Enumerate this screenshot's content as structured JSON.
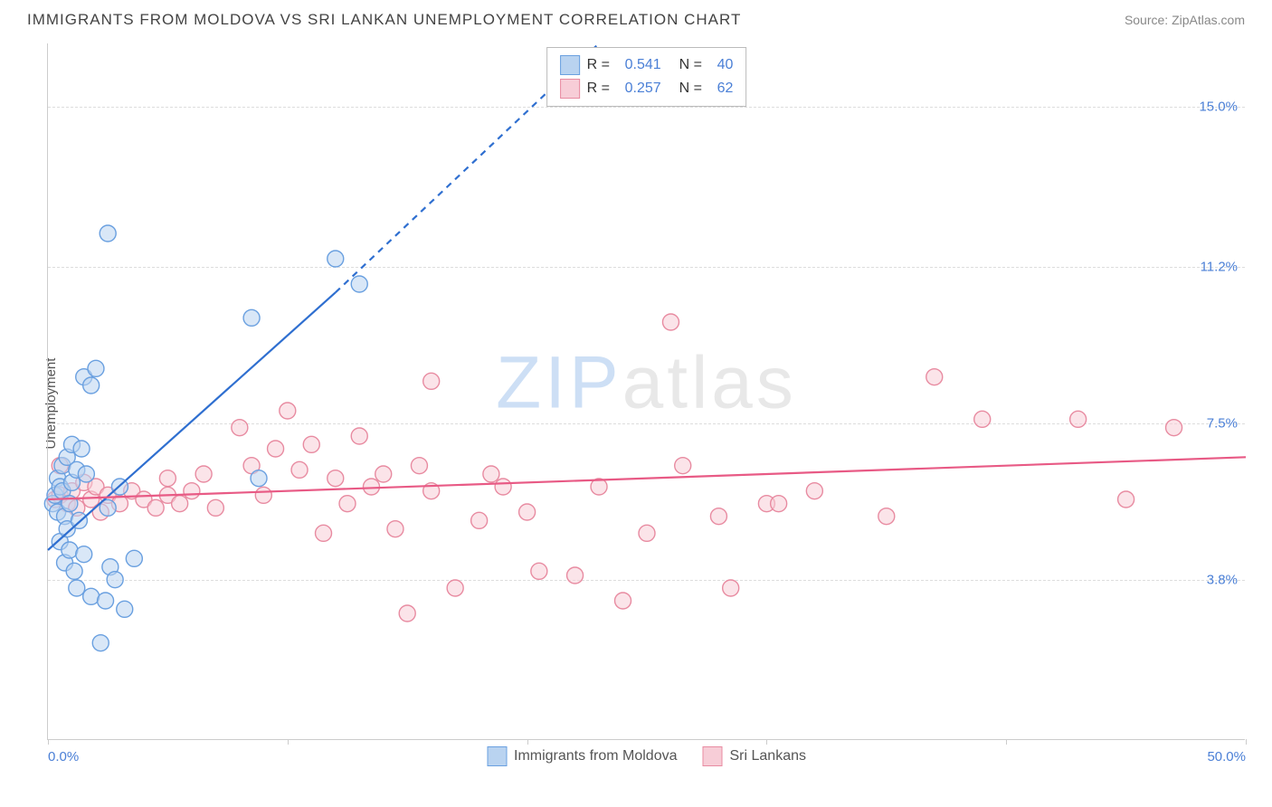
{
  "header": {
    "title": "IMMIGRANTS FROM MOLDOVA VS SRI LANKAN UNEMPLOYMENT CORRELATION CHART",
    "source": "Source: ZipAtlas.com"
  },
  "watermark": {
    "left": "ZIP",
    "right": "atlas"
  },
  "chart": {
    "type": "scatter",
    "ylabel": "Unemployment",
    "xlim": [
      0,
      50
    ],
    "ylim": [
      0,
      16.5
    ],
    "xtick_positions": [
      0,
      10,
      20,
      30,
      40,
      50
    ],
    "xtick_labels_shown": {
      "0": "0.0%",
      "50": "50.0%"
    },
    "yticks": [
      {
        "v": 3.8,
        "label": "3.8%"
      },
      {
        "v": 7.5,
        "label": "7.5%"
      },
      {
        "v": 11.2,
        "label": "11.2%"
      },
      {
        "v": 15.0,
        "label": "15.0%"
      }
    ],
    "background_color": "#ffffff",
    "grid_color": "#dddddd",
    "axis_color": "#cccccc",
    "marker_radius": 9,
    "marker_stroke_width": 1.4,
    "trend_line_width": 2.2
  },
  "series": [
    {
      "name": "Immigrants from Moldova",
      "fill_color": "#b9d3f0",
      "stroke_color": "#6aa0e0",
      "line_color": "#2f6fd0",
      "r_value": "0.541",
      "n_value": "40",
      "trend": {
        "x1": 0,
        "y1": 4.5,
        "x2": 12,
        "y2": 10.6,
        "x2_dash": 23,
        "y2_dash": 16.5
      },
      "points": [
        [
          0.2,
          5.6
        ],
        [
          0.3,
          5.8
        ],
        [
          0.4,
          6.2
        ],
        [
          0.4,
          5.4
        ],
        [
          0.5,
          4.7
        ],
        [
          0.5,
          6.0
        ],
        [
          0.6,
          5.9
        ],
        [
          0.6,
          6.5
        ],
        [
          0.7,
          4.2
        ],
        [
          0.7,
          5.3
        ],
        [
          0.8,
          5.0
        ],
        [
          0.8,
          6.7
        ],
        [
          0.9,
          5.6
        ],
        [
          0.9,
          4.5
        ],
        [
          1.0,
          6.1
        ],
        [
          1.0,
          7.0
        ],
        [
          1.1,
          4.0
        ],
        [
          1.2,
          6.4
        ],
        [
          1.2,
          3.6
        ],
        [
          1.3,
          5.2
        ],
        [
          1.4,
          6.9
        ],
        [
          1.5,
          8.6
        ],
        [
          1.5,
          4.4
        ],
        [
          1.6,
          6.3
        ],
        [
          1.8,
          8.4
        ],
        [
          1.8,
          3.4
        ],
        [
          2.0,
          8.8
        ],
        [
          2.2,
          2.3
        ],
        [
          2.4,
          3.3
        ],
        [
          2.5,
          5.5
        ],
        [
          2.5,
          12.0
        ],
        [
          2.6,
          4.1
        ],
        [
          2.8,
          3.8
        ],
        [
          3.0,
          6.0
        ],
        [
          3.2,
          3.1
        ],
        [
          3.6,
          4.3
        ],
        [
          8.5,
          10.0
        ],
        [
          8.8,
          6.2
        ],
        [
          12.0,
          11.4
        ],
        [
          13.0,
          10.8
        ]
      ]
    },
    {
      "name": "Sri Lankans",
      "fill_color": "#f7cdd7",
      "stroke_color": "#e88ba1",
      "line_color": "#e85a85",
      "r_value": "0.257",
      "n_value": "62",
      "trend": {
        "x1": 0,
        "y1": 5.7,
        "x2": 50,
        "y2": 6.7
      },
      "points": [
        [
          0.3,
          5.7
        ],
        [
          0.5,
          5.8
        ],
        [
          0.5,
          6.5
        ],
        [
          0.8,
          5.6
        ],
        [
          1.0,
          5.9
        ],
        [
          1.2,
          5.5
        ],
        [
          1.5,
          6.1
        ],
        [
          1.8,
          5.7
        ],
        [
          2.0,
          6.0
        ],
        [
          2.2,
          5.4
        ],
        [
          2.5,
          5.8
        ],
        [
          3.0,
          5.6
        ],
        [
          3.5,
          5.9
        ],
        [
          4.0,
          5.7
        ],
        [
          4.5,
          5.5
        ],
        [
          5.0,
          6.2
        ],
        [
          5.0,
          5.8
        ],
        [
          5.5,
          5.6
        ],
        [
          6.0,
          5.9
        ],
        [
          6.5,
          6.3
        ],
        [
          7.0,
          5.5
        ],
        [
          8.0,
          7.4
        ],
        [
          8.5,
          6.5
        ],
        [
          9.0,
          5.8
        ],
        [
          9.5,
          6.9
        ],
        [
          10.0,
          7.8
        ],
        [
          10.5,
          6.4
        ],
        [
          11.0,
          7.0
        ],
        [
          11.5,
          4.9
        ],
        [
          12.0,
          6.2
        ],
        [
          12.5,
          5.6
        ],
        [
          13.0,
          7.2
        ],
        [
          13.5,
          6.0
        ],
        [
          14.0,
          6.3
        ],
        [
          14.5,
          5.0
        ],
        [
          15.0,
          3.0
        ],
        [
          15.5,
          6.5
        ],
        [
          16.0,
          5.9
        ],
        [
          16.0,
          8.5
        ],
        [
          17.0,
          3.6
        ],
        [
          18.0,
          5.2
        ],
        [
          18.5,
          6.3
        ],
        [
          19.0,
          6.0
        ],
        [
          20.0,
          5.4
        ],
        [
          20.5,
          4.0
        ],
        [
          22.0,
          3.9
        ],
        [
          23.0,
          6.0
        ],
        [
          24.0,
          3.3
        ],
        [
          25.0,
          4.9
        ],
        [
          26.0,
          9.9
        ],
        [
          26.5,
          6.5
        ],
        [
          28.0,
          5.3
        ],
        [
          28.5,
          3.6
        ],
        [
          30.0,
          5.6
        ],
        [
          30.5,
          5.6
        ],
        [
          32.0,
          5.9
        ],
        [
          35.0,
          5.3
        ],
        [
          37.0,
          8.6
        ],
        [
          39.0,
          7.6
        ],
        [
          43.0,
          7.6
        ],
        [
          45.0,
          5.7
        ],
        [
          47.0,
          7.4
        ]
      ]
    }
  ],
  "legend_bottom": [
    {
      "label": "Immigrants from Moldova",
      "fill": "#b9d3f0",
      "stroke": "#6aa0e0"
    },
    {
      "label": "Sri Lankans",
      "fill": "#f7cdd7",
      "stroke": "#e88ba1"
    }
  ]
}
